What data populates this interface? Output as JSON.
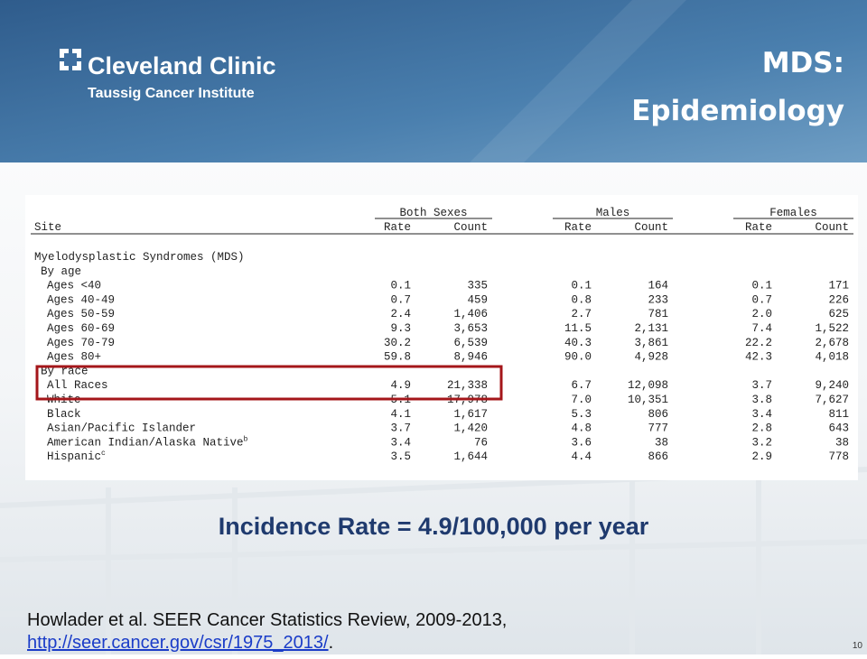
{
  "header": {
    "logo_name": "Cleveland Clinic",
    "logo_subtitle": "Taussig Cancer Institute",
    "title_line1": "MDS:",
    "title_line2": "Epidemiology"
  },
  "table": {
    "group_headers": [
      "Both Sexes",
      "Males",
      "Females"
    ],
    "column_headers": [
      "Site",
      "Rate",
      "Count",
      "Rate",
      "Count",
      "Rate",
      "Count"
    ],
    "lines": [
      {
        "label": "Myelodysplastic Syndromes (MDS)"
      },
      {
        "label": "By age"
      },
      {
        "label": "Ages <40",
        "cells": [
          "0.1",
          "335",
          "0.1",
          "164",
          "0.1",
          "171"
        ]
      },
      {
        "label": "Ages 40-49",
        "cells": [
          "0.7",
          "459",
          "0.8",
          "233",
          "0.7",
          "226"
        ]
      },
      {
        "label": "Ages 50-59",
        "cells": [
          "2.4",
          "1,406",
          "2.7",
          "781",
          "2.0",
          "625"
        ]
      },
      {
        "label": "Ages 60-69",
        "cells": [
          "9.3",
          "3,653",
          "11.5",
          "2,131",
          "7.4",
          "1,522"
        ]
      },
      {
        "label": "Ages 70-79",
        "cells": [
          "30.2",
          "6,539",
          "40.3",
          "3,861",
          "22.2",
          "2,678"
        ]
      },
      {
        "label": "Ages 80+",
        "cells": [
          "59.8",
          "8,946",
          "90.0",
          "4,928",
          "42.3",
          "4,018"
        ]
      },
      {
        "label": "By race"
      },
      {
        "label": "All Races",
        "cells": [
          "4.9",
          "21,338",
          "6.7",
          "12,098",
          "3.7",
          "9,240"
        ]
      },
      {
        "label": "White",
        "cells": [
          "5.1",
          "17,978",
          "7.0",
          "10,351",
          "3.8",
          "7,627"
        ]
      },
      {
        "label": "Black",
        "cells": [
          "4.1",
          "1,617",
          "5.3",
          "806",
          "3.4",
          "811"
        ]
      },
      {
        "label": "Asian/Pacific Islander",
        "cells": [
          "3.7",
          "1,420",
          "4.8",
          "777",
          "2.8",
          "643"
        ]
      },
      {
        "label": "American Indian/Alaska Native",
        "note": "b",
        "cells": [
          "3.4",
          "76",
          "3.6",
          "38",
          "3.2",
          "38"
        ]
      },
      {
        "label": "Hispanic",
        "note": "c",
        "cells": [
          "3.5",
          "1,644",
          "4.4",
          "866",
          "2.9",
          "778"
        ]
      }
    ]
  },
  "headline": "Incidence Rate = 4.9/100,000 per year",
  "citation": {
    "text": "Howlader et al. SEER Cancer Statistics Review, 2009-2013,",
    "link": "http://seer.cancer.gov/csr/1975_2013/",
    "end": "."
  },
  "page_number": "10"
}
